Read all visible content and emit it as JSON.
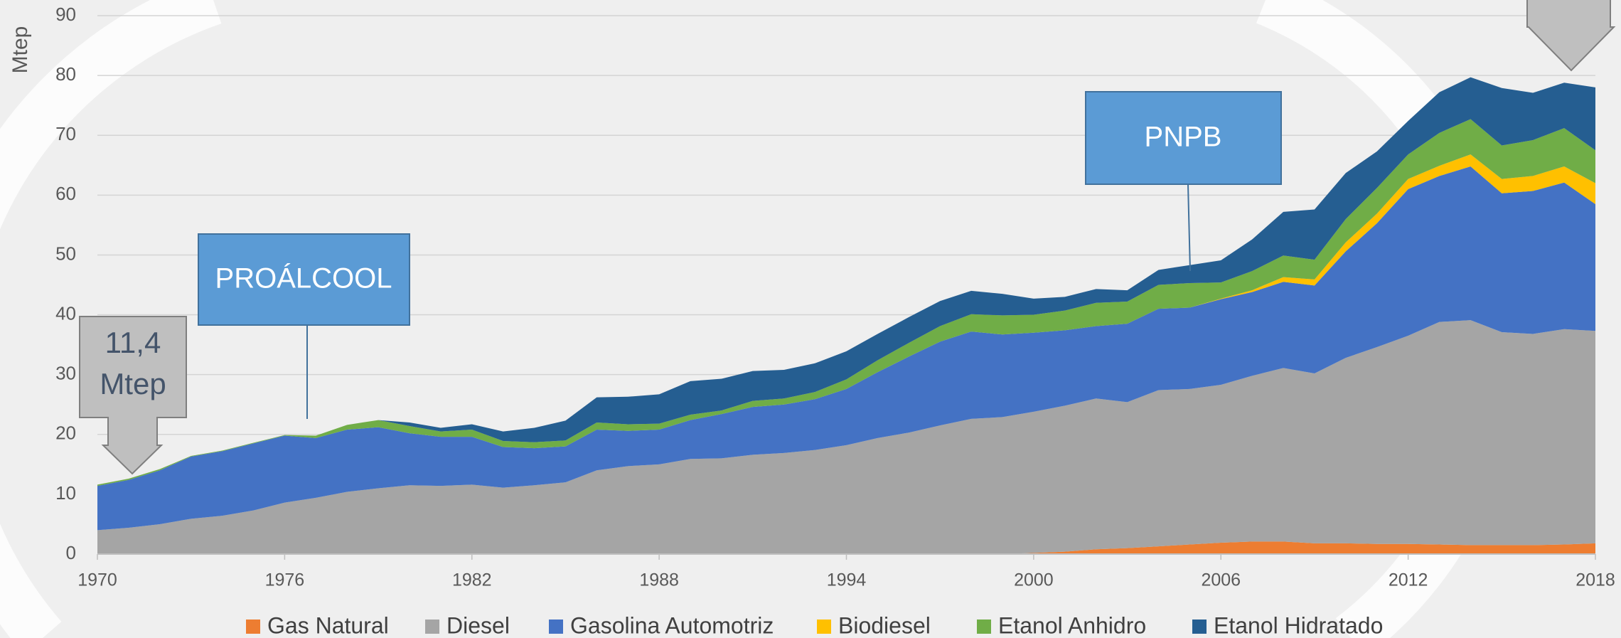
{
  "chart_data": {
    "type": "stacked_area",
    "y_label": "Mtep",
    "x": [
      1970,
      1971,
      1972,
      1973,
      1974,
      1975,
      1976,
      1977,
      1978,
      1979,
      1980,
      1981,
      1982,
      1983,
      1984,
      1985,
      1986,
      1987,
      1988,
      1989,
      1990,
      1991,
      1992,
      1993,
      1994,
      1995,
      1996,
      1997,
      1998,
      1999,
      2000,
      2001,
      2002,
      2003,
      2004,
      2005,
      2006,
      2007,
      2008,
      2009,
      2010,
      2011,
      2012,
      2013,
      2014,
      2015,
      2016,
      2017,
      2018
    ],
    "xlim": [
      1970,
      2018
    ],
    "xticks": [
      1970,
      1976,
      1982,
      1988,
      1994,
      2000,
      2006,
      2012,
      2018
    ],
    "ylim": [
      0,
      90
    ],
    "yticks": [
      0,
      10,
      20,
      30,
      40,
      50,
      60,
      70,
      80,
      90
    ],
    "grid": true,
    "series": [
      {
        "name": "Gas Natural",
        "color": "#ed7d31",
        "values": [
          0,
          0,
          0,
          0,
          0,
          0,
          0,
          0,
          0,
          0,
          0,
          0,
          0,
          0,
          0,
          0,
          0,
          0,
          0,
          0,
          0,
          0,
          0,
          0,
          0,
          0,
          0,
          0,
          0,
          0,
          0.2,
          0.4,
          0.8,
          1.0,
          1.3,
          1.6,
          1.9,
          2.1,
          2.1,
          1.8,
          1.8,
          1.7,
          1.7,
          1.6,
          1.5,
          1.5,
          1.5,
          1.6,
          1.8
        ]
      },
      {
        "name": "Diesel",
        "color": "#a5a5a5",
        "values": [
          4.0,
          4.4,
          5.0,
          5.9,
          6.4,
          7.3,
          8.6,
          9.4,
          10.4,
          11.0,
          11.5,
          11.4,
          11.6,
          11.1,
          11.5,
          12.0,
          14.0,
          14.7,
          15.0,
          15.9,
          16.0,
          16.6,
          16.9,
          17.4,
          18.2,
          19.4,
          20.3,
          21.5,
          22.6,
          22.9,
          23.6,
          24.4,
          25.2,
          24.4,
          26.1,
          26.0,
          26.4,
          27.7,
          29.0,
          28.4,
          31.0,
          32.9,
          34.8,
          37.2,
          37.6,
          35.6,
          35.3,
          36.0,
          35.5
        ]
      },
      {
        "name": "Gasolina Automotriz",
        "color": "#4472c4",
        "values": [
          7.4,
          8.0,
          9.0,
          10.4,
          10.8,
          11.2,
          11.2,
          10.0,
          10.4,
          10.2,
          8.7,
          8.2,
          8.0,
          6.8,
          6.2,
          6.0,
          6.8,
          5.9,
          5.8,
          6.5,
          7.4,
          8.0,
          8.1,
          8.5,
          9.4,
          11.0,
          12.7,
          14.0,
          14.6,
          13.8,
          13.2,
          12.6,
          12.1,
          13.1,
          13.6,
          13.6,
          14.3,
          14.0,
          14.4,
          14.7,
          17.8,
          20.7,
          24.5,
          24.4,
          25.7,
          23.2,
          23.9,
          24.5,
          21.2
        ]
      },
      {
        "name": "Biodiesel",
        "color": "#ffc000",
        "values": [
          0,
          0,
          0,
          0,
          0,
          0,
          0,
          0,
          0,
          0,
          0,
          0,
          0,
          0,
          0,
          0,
          0,
          0,
          0,
          0,
          0,
          0,
          0,
          0,
          0,
          0,
          0,
          0,
          0,
          0,
          0,
          0,
          0,
          0,
          0,
          0,
          0.1,
          0.3,
          0.8,
          1.0,
          1.5,
          1.6,
          1.7,
          1.7,
          2.0,
          2.4,
          2.5,
          2.7,
          3.5
        ]
      },
      {
        "name": "Etanol Anhidro",
        "color": "#70ad47",
        "values": [
          0.2,
          0.2,
          0.2,
          0.1,
          0.1,
          0.1,
          0.1,
          0.4,
          0.8,
          1.2,
          1.2,
          0.9,
          1.2,
          1.0,
          1.0,
          1.0,
          1.2,
          1.1,
          1.0,
          0.9,
          0.6,
          1.0,
          1.0,
          1.2,
          1.6,
          2.0,
          2.3,
          2.6,
          2.9,
          3.2,
          3.0,
          3.3,
          3.9,
          3.7,
          4.0,
          4.1,
          2.7,
          3.2,
          3.6,
          3.3,
          3.9,
          4.3,
          4.1,
          5.5,
          5.9,
          5.6,
          6.0,
          6.4,
          5.5
        ]
      },
      {
        "name": "Etanol Hidratado",
        "color": "#255e91",
        "values": [
          0,
          0,
          0,
          0,
          0,
          0,
          0,
          0,
          0,
          0,
          0.6,
          0.6,
          0.9,
          1.6,
          2.4,
          3.3,
          4.2,
          4.6,
          4.9,
          5.6,
          5.3,
          5.0,
          4.8,
          4.8,
          4.7,
          4.4,
          4.3,
          4.2,
          3.9,
          3.6,
          2.7,
          2.3,
          2.3,
          1.9,
          2.5,
          3.0,
          3.7,
          5.3,
          7.3,
          8.4,
          7.7,
          6.1,
          5.6,
          6.8,
          7.0,
          9.6,
          7.9,
          7.6,
          10.5
        ]
      }
    ],
    "annotations": [
      "PROÁLCOOL",
      "PNPB"
    ],
    "callout": [
      "11,4",
      "Mtep"
    ]
  }
}
